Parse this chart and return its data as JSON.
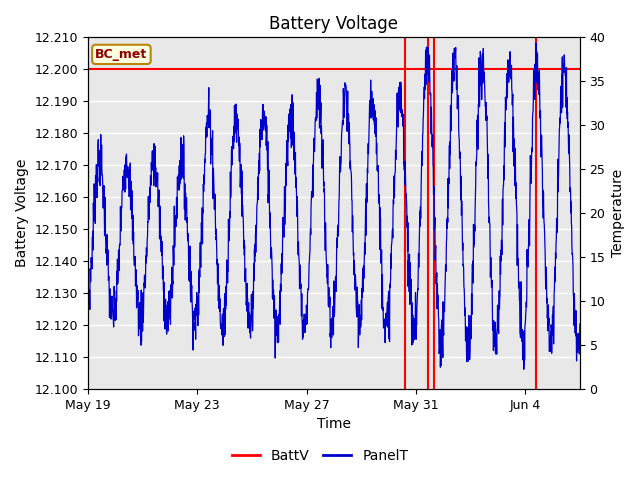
{
  "title": "Battery Voltage",
  "xlabel": "Time",
  "ylabel_left": "Battery Voltage",
  "ylabel_right": "Temperature",
  "ylim_left": [
    12.1,
    12.21
  ],
  "ylim_right": [
    0,
    40
  ],
  "yticks_left": [
    12.1,
    12.11,
    12.12,
    12.13,
    12.14,
    12.15,
    12.16,
    12.17,
    12.18,
    12.19,
    12.2,
    12.21
  ],
  "yticks_right": [
    0,
    5,
    10,
    15,
    20,
    25,
    30,
    35,
    40
  ],
  "xtick_labels": [
    "May 19",
    "May 23",
    "May 27",
    "May 31",
    "Jun 4"
  ],
  "xtick_positions": [
    0,
    4,
    8,
    12,
    16
  ],
  "xlim": [
    0,
    18
  ],
  "batt_v_value": 12.2,
  "batt_v_color": "#FF0000",
  "panel_t_color": "#0000CC",
  "vline_positions": [
    11.6,
    12.45,
    12.65,
    16.4
  ],
  "vline_color": "#FF0000",
  "label_box_text": "BC_met",
  "label_box_text_color": "#8B0000",
  "label_box_facecolor": "#FFFFE0",
  "label_box_edgecolor": "#B8860B",
  "background_color": "#FFFFFF",
  "plot_bg_color": "#E8E8E8",
  "grid_color": "#FFFFFF",
  "title_fontsize": 12,
  "axis_fontsize": 10,
  "tick_fontsize": 9,
  "legend_fontsize": 10
}
